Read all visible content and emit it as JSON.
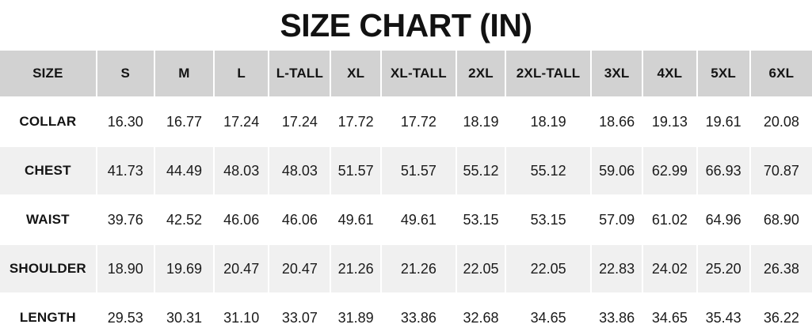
{
  "title": "SIZE CHART (IN)",
  "colors": {
    "header_bg": "#d2d2d2",
    "stripe_bg": "#f0f0f0",
    "row_bg": "#ffffff",
    "text": "#141414",
    "gap": "#ffffff"
  },
  "chart_data": {
    "type": "table",
    "title": "SIZE CHART (IN)",
    "unit": "IN",
    "columns": [
      "SIZE",
      "S",
      "M",
      "L",
      "L-TALL",
      "XL",
      "XL-TALL",
      "2XL",
      "2XL-TALL",
      "3XL",
      "4XL",
      "5XL",
      "6XL"
    ],
    "rows": [
      {
        "label": "COLLAR",
        "values": [
          "16.30",
          "16.77",
          "17.24",
          "17.24",
          "17.72",
          "17.72",
          "18.19",
          "18.19",
          "18.66",
          "19.13",
          "19.61",
          "20.08"
        ]
      },
      {
        "label": "CHEST",
        "values": [
          "41.73",
          "44.49",
          "48.03",
          "48.03",
          "51.57",
          "51.57",
          "55.12",
          "55.12",
          "59.06",
          "62.99",
          "66.93",
          "70.87"
        ]
      },
      {
        "label": "WAIST",
        "values": [
          "39.76",
          "42.52",
          "46.06",
          "46.06",
          "49.61",
          "49.61",
          "53.15",
          "53.15",
          "57.09",
          "61.02",
          "64.96",
          "68.90"
        ]
      },
      {
        "label": "SHOULDER",
        "values": [
          "18.90",
          "19.69",
          "20.47",
          "20.47",
          "21.26",
          "21.26",
          "22.05",
          "22.05",
          "22.83",
          "24.02",
          "25.20",
          "26.38"
        ]
      },
      {
        "label": "LENGTH",
        "values": [
          "29.53",
          "30.31",
          "31.10",
          "33.07",
          "31.89",
          "33.86",
          "32.68",
          "34.65",
          "33.86",
          "34.65",
          "35.43",
          "36.22"
        ]
      }
    ],
    "layout_hints": {
      "header_row_shaded": true,
      "striped_row_labels": [
        "CHEST",
        "SHOULDER"
      ],
      "last_row_clipped_at_bottom": true
    }
  }
}
